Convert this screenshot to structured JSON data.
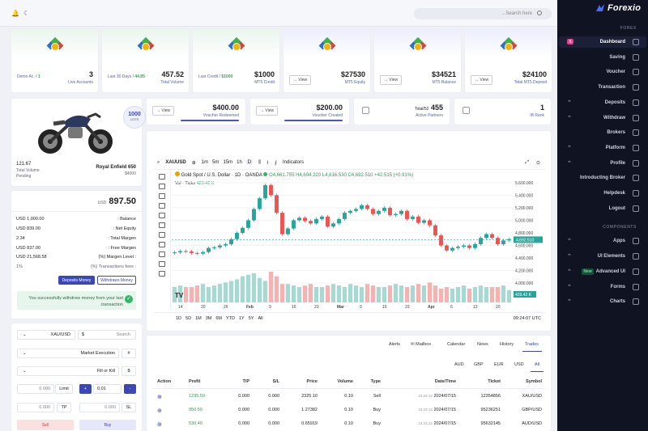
{
  "brand": {
    "name": "Forexio"
  },
  "search": {
    "placeholder": "...Search here"
  },
  "sidebar": {
    "section_main": "FOREX",
    "section_components": "COMPONENTS",
    "items": [
      {
        "label": "Dashboard",
        "badge": "5"
      },
      {
        "label": "Saving"
      },
      {
        "label": "Voucher"
      },
      {
        "label": "Transaction"
      },
      {
        "label": "Deposits"
      },
      {
        "label": "Withdraw"
      },
      {
        "label": "Brokers"
      },
      {
        "label": "Platform"
      },
      {
        "label": "Profile"
      },
      {
        "label": "Introducting Broker"
      },
      {
        "label": "Helpdesk"
      },
      {
        "label": "Logout"
      },
      {
        "label": "Apps"
      },
      {
        "label": "UI Elements"
      },
      {
        "label": "Advanced UI",
        "badge": "New"
      },
      {
        "label": "Forms"
      },
      {
        "label": "Charts"
      }
    ]
  },
  "stats": [
    {
      "left_label": "Demo Ac. /",
      "left_value": "1",
      "value": "3",
      "label": "Live Accounts"
    },
    {
      "left_label": "Last 30 Days /",
      "left_value": "44.85",
      "value": "457.52",
      "label": "Total Volume"
    },
    {
      "left_label": "Last Credit /",
      "left_value": "$1000",
      "value": "$1000",
      "label": "MT5 Credit"
    },
    {
      "button": "View",
      "value": "$27530",
      "label": "MT5 Equity"
    },
    {
      "button": "View",
      "value": "$34521",
      "label": "MT5 Balance"
    },
    {
      "button": "View",
      "value": "$24100",
      "label": "Total MT5 Deposit"
    }
  ],
  "mini_cards": [
    {
      "button": "View",
      "value": "$400.00",
      "label": "Voucher Redeemed"
    },
    {
      "button": "View",
      "value": "$200.00",
      "label": "Voucher Created"
    },
    {
      "value_prefix": "Total/52",
      "value": "455",
      "label": "Active Partners"
    },
    {
      "value": "1",
      "label": "IB Rank"
    }
  ],
  "bike": {
    "lots": "1000",
    "lots_label": "LOTS",
    "volume": "121.67",
    "volume_label": "Total Volume",
    "status": "Pending",
    "model": "Royal Enfield 650",
    "price": "$4000"
  },
  "balance": {
    "currency": "USD",
    "amount": "897.50",
    "rows": [
      {
        "value": "USD 1,000.00",
        "label": ": Balance"
      },
      {
        "value": "USD 839.00",
        "label": ": Net Equity"
      },
      {
        "value": "2.34",
        "label": ": Total Margen"
      },
      {
        "value": "USD 837.00",
        "label": ": Free Margen"
      },
      {
        "value": "USD 21,568.58",
        "label": "(%) Margen Level :"
      },
      {
        "value": "1%",
        "label": "(%) Transactions fees :"
      }
    ],
    "deposit_btn": "Deposits Money",
    "withdraw_btn": "Withdraws Money",
    "alert": "You successfully withdrew money from your last .transaction"
  },
  "order": {
    "symbol": "XAU/USD",
    "symbol_icon": "$",
    "search": "Search",
    "execution": "Market Execution",
    "exec_icon": "#",
    "fill": "Fill or Kill",
    "fill_icon": "$",
    "price_val": "0.000",
    "limit": "Limit",
    "plus": "+",
    "lot": "0.01",
    "minus": "-",
    "tp_val": "0.000",
    "tp": "TP",
    "sl_val": "0.000",
    "sl": "SL",
    "sell": "Sell",
    "buy": "Buy"
  },
  "chart": {
    "toolbar": {
      "symbol": "XAUUSD",
      "intervals": [
        "1m",
        "5m",
        "15m",
        "1h",
        "D"
      ],
      "indicators": "Indicators"
    },
    "title": "Gold Spot / U.S. Dollar · 1D · OANDA",
    "ohlc": "O4,661.755 H4,694.220 L4,616.530 C4,692.510 +42.515 (+0.91%)",
    "vol": "Vol · Ticks",
    "vol_val": "429.42 K",
    "price_label": "4,692.510",
    "vol_label": "429.42 K",
    "ranges": [
      "1D",
      "5D",
      "1M",
      "3M",
      "6M",
      "YTD",
      "1Y",
      "5Y",
      "All"
    ],
    "time": "09:24:07 UTC"
  },
  "chart_data": {
    "type": "candlestick",
    "y_ticks": [
      "5,600.000",
      "5,400.000",
      "5,200.000",
      "5,000.000",
      "4,800.000",
      "4,600.000",
      "4,400.000",
      "4,200.000",
      "4,000.000"
    ],
    "ylim": [
      3900,
      5700
    ],
    "x_ticks": [
      "14",
      "20",
      "26",
      "Feb",
      "9",
      "16",
      "23",
      "Mar",
      "9",
      "16",
      "23",
      "Apr",
      "6",
      "13",
      "20"
    ],
    "candles": [
      4490,
      4510,
      4505,
      4480,
      4470,
      4495,
      4560,
      4570,
      4600,
      4620,
      4700,
      4800,
      4880,
      5000,
      5180,
      5350,
      5560,
      5400,
      5120,
      4780,
      4870,
      5000,
      5040,
      4990,
      4950,
      5020,
      5060,
      4900,
      4950,
      5020,
      5120,
      5150,
      5180,
      5240,
      5180,
      5100,
      5150,
      5200,
      5080,
      5100,
      5150,
      5020,
      5060,
      4960,
      5000,
      4920,
      4760,
      4600,
      4520,
      4560,
      4580,
      4600,
      4560,
      4620,
      4720,
      4780,
      4720,
      4620,
      4680,
      4700
    ],
    "volume": [
      0.5,
      0.55,
      0.5,
      0.5,
      0.55,
      0.6,
      0.5,
      0.55,
      0.6,
      0.65,
      0.7,
      0.75,
      0.85,
      0.9,
      0.95,
      0.8,
      0.7,
      1.0,
      0.85,
      0.6,
      0.6,
      0.55,
      0.5,
      0.55,
      0.6,
      0.5,
      0.5,
      0.55,
      0.6,
      0.55,
      0.5,
      0.6,
      0.55,
      0.5,
      0.6,
      0.55,
      0.5,
      0.5,
      0.55,
      0.6,
      0.55,
      0.5,
      0.55,
      0.6,
      0.55,
      0.65,
      0.55,
      0.45,
      0.5,
      0.45,
      0.5,
      0.55,
      0.45,
      0.5,
      0.55,
      0.5,
      0.5,
      0.5,
      0.55,
      0.4
    ]
  },
  "trade_tabs": [
    "Alerts",
    "Mailbox",
    "Calendar",
    "News",
    "History",
    "Trades"
  ],
  "currency_tabs": [
    "AUD",
    "GBP",
    "EUR",
    "USD",
    "All"
  ],
  "table": {
    "headers": [
      "Action",
      "Profit",
      "T/P",
      "S/L",
      "Price",
      "Volume",
      "Type",
      "Date/Time",
      "Ticket",
      "Symbol"
    ],
    "rows": [
      {
        "profit": "1235.50",
        "tp": "0.000",
        "sl": "0.000",
        "price": "2325.10",
        "volume": "0.10",
        "type": "Sell",
        "time": "23:24:12",
        "date": "2024/07/15",
        "ticket": "12354856",
        "symbol": "XAU/USD"
      },
      {
        "profit": "950.50",
        "tp": "0.000",
        "sl": "0.000",
        "price": "1.27382",
        "volume": "0.10",
        "type": "Buy",
        "time": "23:24:12",
        "date": "2024/07/15",
        "ticket": "95236251",
        "symbol": "GBP/USD"
      },
      {
        "profit": "530.40",
        "tp": "0.000",
        "sl": "0.000",
        "price": "0.65919",
        "volume": "0.10",
        "type": "Buy",
        "time": "23:24:12",
        "date": "2024/07/15",
        "ticket": "95632145",
        "symbol": "AUD/USD"
      }
    ]
  }
}
